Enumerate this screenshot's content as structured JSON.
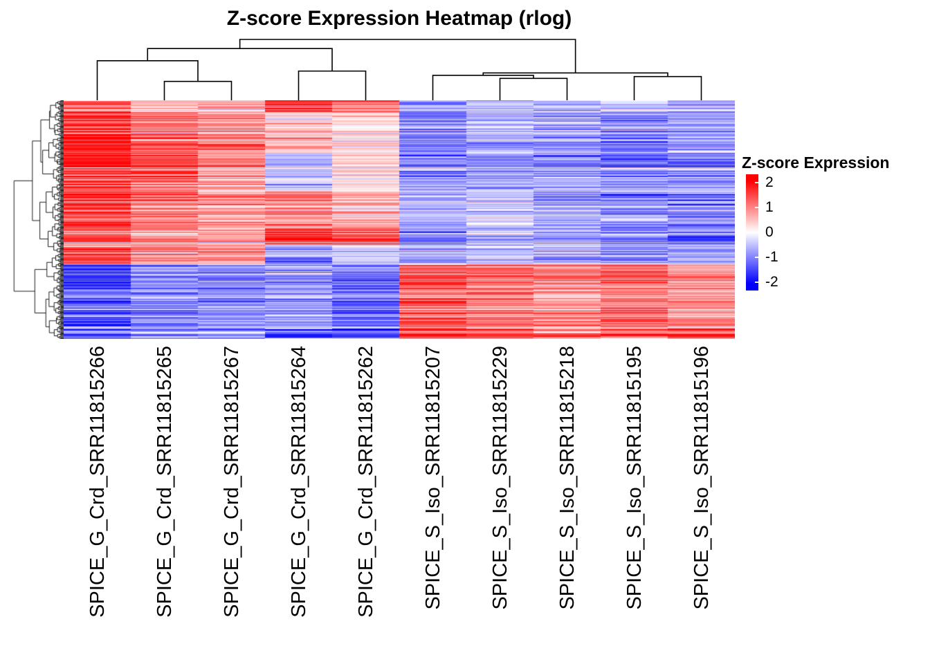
{
  "chart_data": {
    "type": "heatmap",
    "title": "Z-score Expression Heatmap (rlog)",
    "columns": [
      "SPICE_G_Crd_SRR11815266",
      "SPICE_G_Crd_SRR11815265",
      "SPICE_G_Crd_SRR11815267",
      "SPICE_G_Crd_SRR11815264",
      "SPICE_G_Crd_SRR11815262",
      "SPICE_S_Iso_SRR11815207",
      "SPICE_S_Iso_SRR11815229",
      "SPICE_S_Iso_SRR11815218",
      "SPICE_S_Iso_SRR11815195",
      "SPICE_S_Iso_SRR11815196"
    ],
    "legend": {
      "title": "Z-score Expression",
      "ticks": [
        2,
        1,
        0,
        -1,
        -2
      ],
      "colors": {
        "high": "#FF0000",
        "mid": "#FFFFFF",
        "low": "#0000FF"
      },
      "position": "right"
    },
    "value_range": [
      -2,
      2
    ],
    "color_scale_max": 2,
    "n_rows_approx": 320,
    "noise_sd": 0.35,
    "row_effect_sd": 0.4,
    "segments": [
      {
        "frac": 0.05,
        "means": [
          1.1,
          0.5,
          0.7,
          1.5,
          1.2,
          -0.8,
          -0.5,
          -0.6,
          -0.5,
          -0.6
        ]
      },
      {
        "frac": 0.17,
        "means": [
          1.9,
          1.2,
          1.0,
          0.4,
          0.3,
          -0.9,
          -0.7,
          -0.7,
          -0.9,
          -0.7
        ]
      },
      {
        "frac": 0.16,
        "means": [
          1.9,
          1.3,
          0.9,
          -0.5,
          0.3,
          -0.8,
          -0.8,
          -0.8,
          -1.0,
          -0.9
        ]
      },
      {
        "frac": 0.16,
        "means": [
          1.6,
          1.1,
          0.8,
          0.9,
          0.6,
          -0.6,
          -0.3,
          -0.7,
          -0.9,
          -1.0
        ]
      },
      {
        "frac": 0.07,
        "means": [
          1.2,
          0.8,
          0.7,
          1.9,
          1.3,
          -1.0,
          -0.6,
          -0.8,
          -0.9,
          -1.1
        ]
      },
      {
        "frac": 0.08,
        "means": [
          1.4,
          0.9,
          0.8,
          -0.9,
          -0.4,
          -0.7,
          -0.5,
          -0.6,
          -0.8,
          -0.7
        ]
      },
      {
        "frac": 0.27,
        "means": [
          -1.4,
          -0.9,
          -0.9,
          -0.7,
          -1.1,
          1.4,
          1.1,
          0.9,
          1.2,
          0.8
        ]
      },
      {
        "frac": 0.04,
        "means": [
          -1.0,
          -0.7,
          -0.6,
          -1.2,
          -1.3,
          1.6,
          1.3,
          1.0,
          1.4,
          1.5
        ]
      }
    ],
    "col_dendrogram": {
      "merges": [
        {
          "a": "c1",
          "b": "c2",
          "h": 0.31
        },
        {
          "a": "c0",
          "b": "p0",
          "h": 0.65
        },
        {
          "a": "c3",
          "b": "c4",
          "h": 0.48
        },
        {
          "a": "p1",
          "b": "p2",
          "h": 0.85
        },
        {
          "a": "c6",
          "b": "c7",
          "h": 0.36
        },
        {
          "a": "c5",
          "b": "p4",
          "h": 0.41
        },
        {
          "a": "c8",
          "b": "c9",
          "h": 0.39
        },
        {
          "a": "p5",
          "b": "p6",
          "h": 0.45
        },
        {
          "a": "p3",
          "b": "p7",
          "h": 1.0
        }
      ]
    },
    "layout": {
      "grid": false,
      "row_dendrogram": "left",
      "col_dendrogram": "top"
    }
  }
}
